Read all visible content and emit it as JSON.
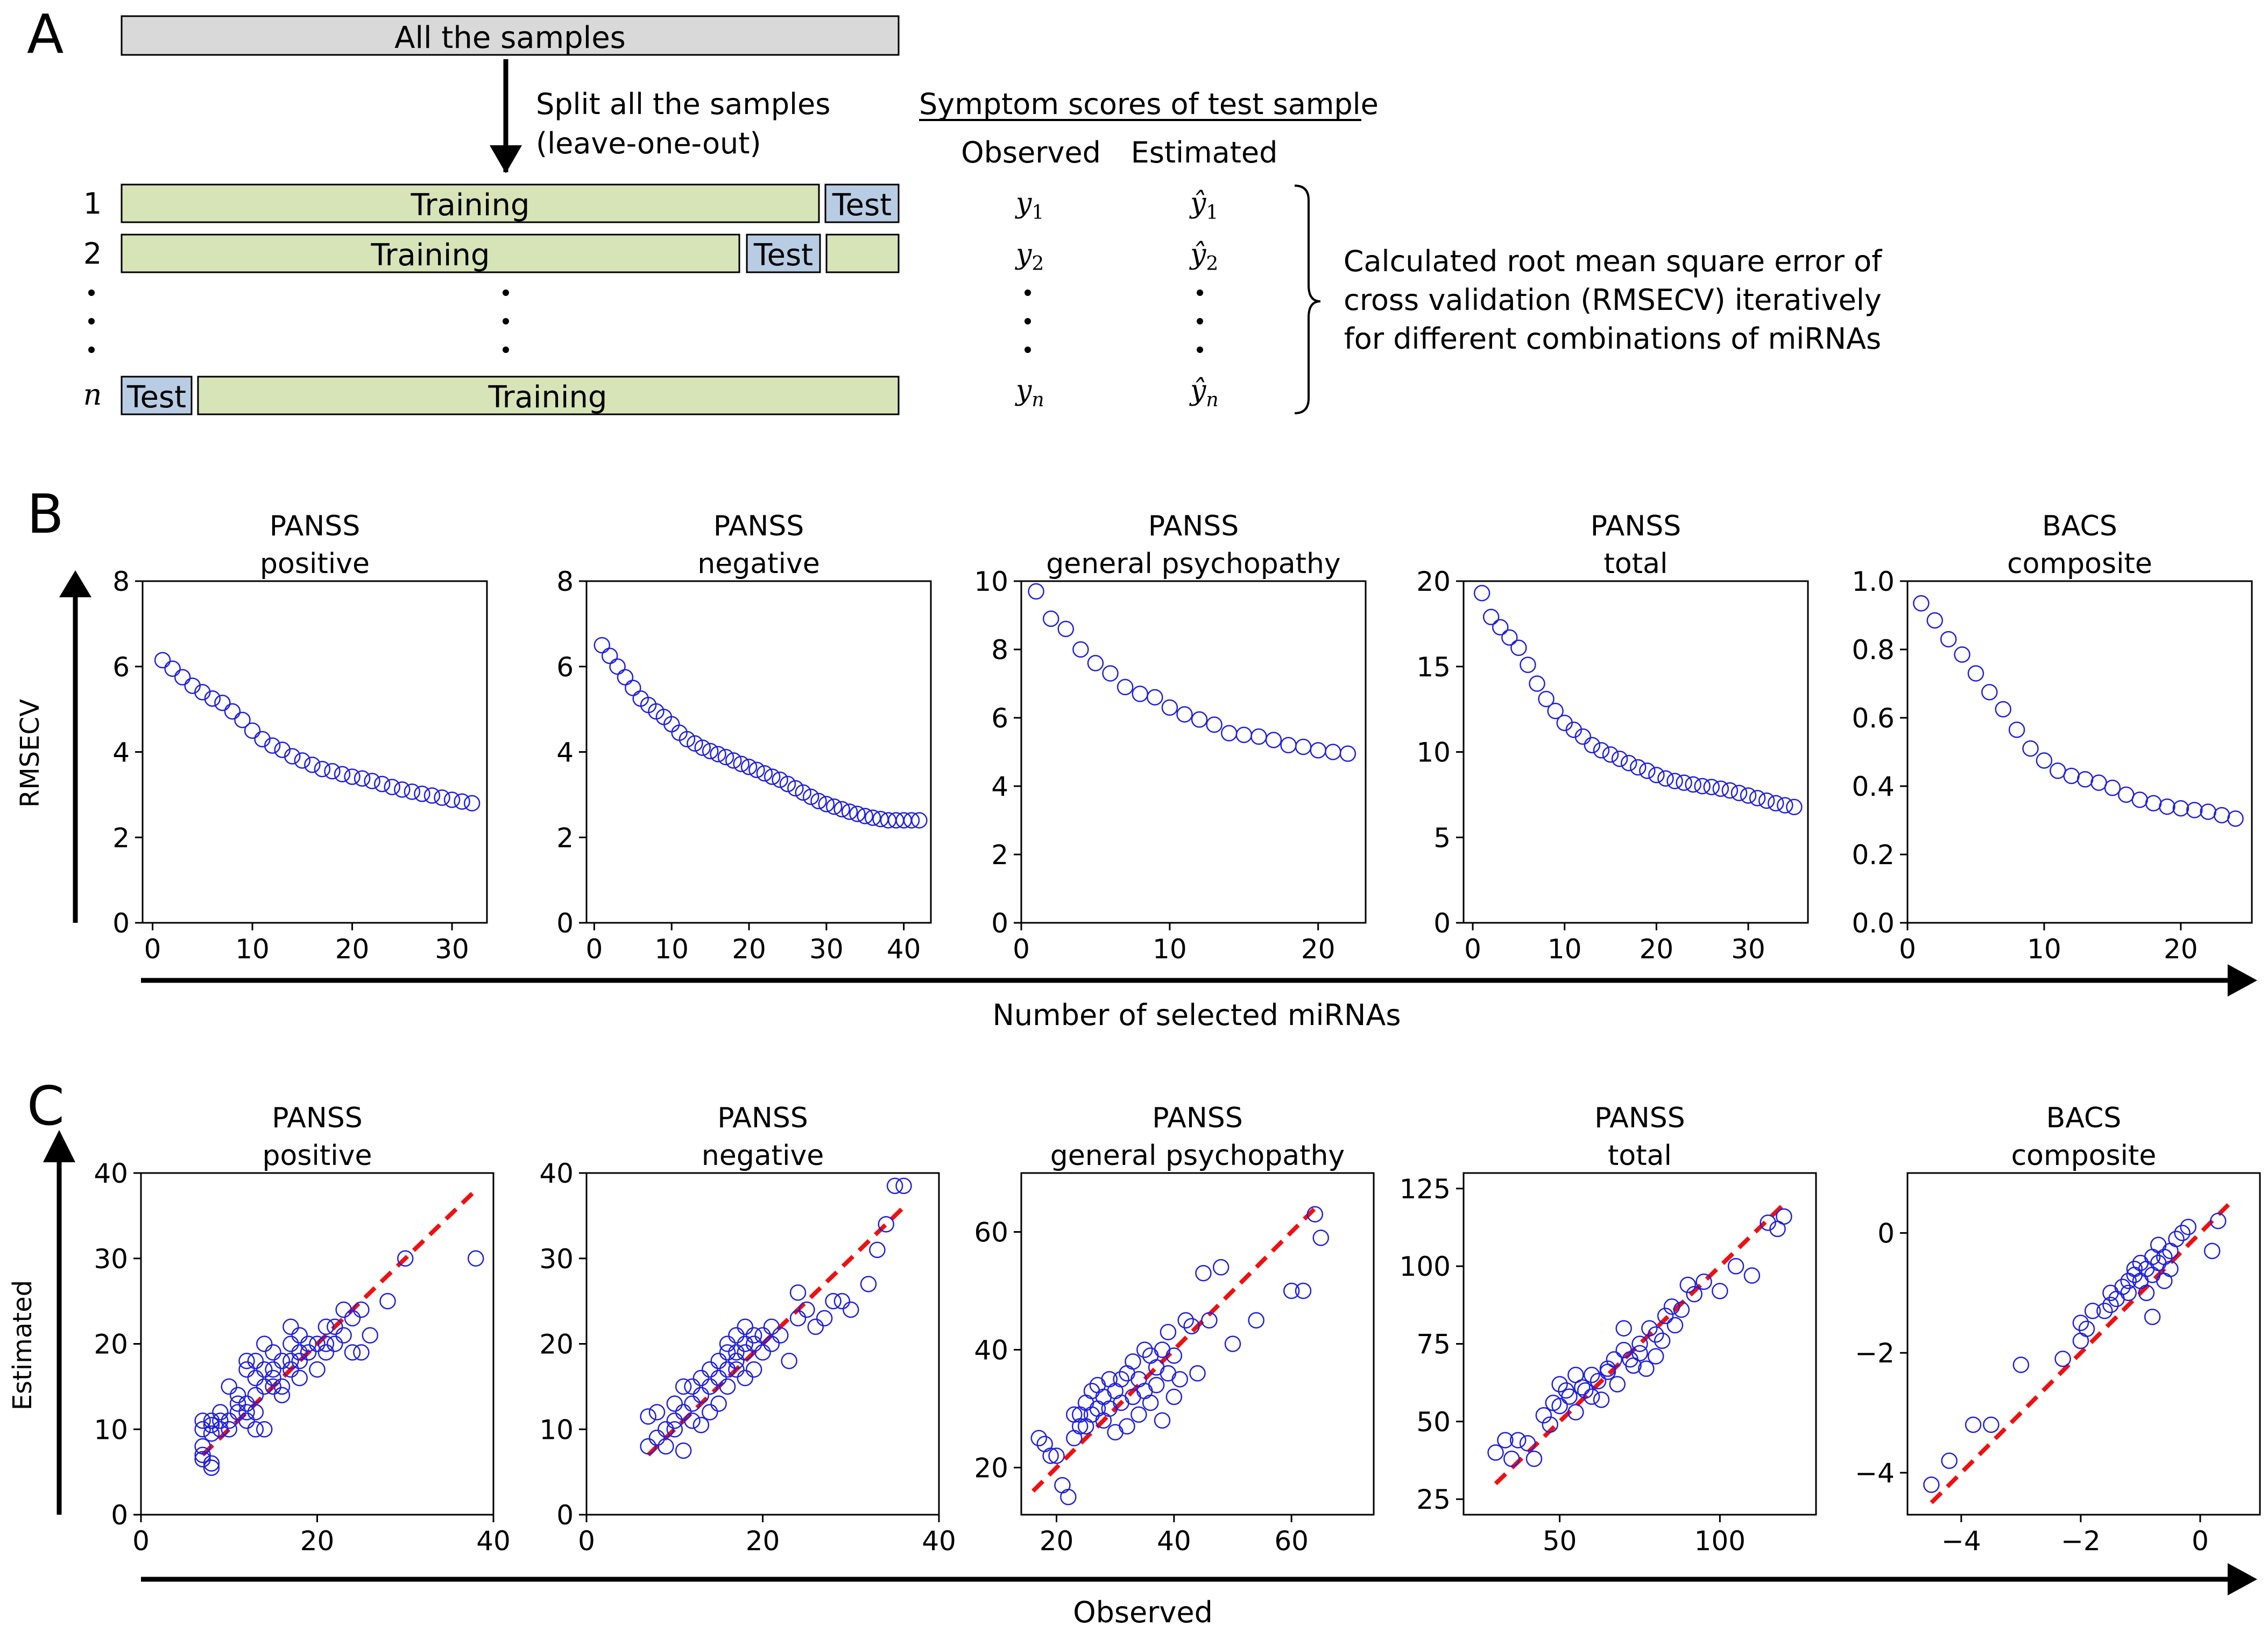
{
  "panel_labels": {
    "a": "A",
    "b": "B",
    "c": "C"
  },
  "panel_a": {
    "all_samples": "All the samples",
    "split_line1": "Split all the samples",
    "split_line2": "(leave-one-out)",
    "row1_index": "1",
    "row2_index": "2",
    "rown_index": "n",
    "training": "Training",
    "test": "Test",
    "scores_title": "Symptom scores of test sample",
    "observed_header": "Observed",
    "estimated_header": "Estimated",
    "y_obs": "y",
    "y_est": "ŷ",
    "sub1": "1",
    "sub2": "2",
    "subn": "n",
    "rmsecv_line1": "Calculated root mean square error of",
    "rmsecv_line2": "cross validation (RMSECV) iteratively",
    "rmsecv_line3": "for different combinations of miRNAs"
  },
  "panel_b": {
    "ylabel": "RMSECV",
    "xlabel": "Number of selected miRNAs"
  },
  "panel_c": {
    "ylabel": "Estimated",
    "xlabel": "Observed"
  },
  "colors": {
    "marker": "#2020e0",
    "fit": "#ee1111",
    "train": "#d6e4b8",
    "test": "#b8cce4",
    "gray": "#d9d9d9"
  },
  "chart_data": [
    {
      "id": "b1",
      "type": "scatter",
      "title": [
        "PANSS",
        "positive"
      ],
      "xlim": [
        -1,
        33.5
      ],
      "ylim": [
        0,
        8
      ],
      "xticks": [
        0,
        10,
        20,
        30
      ],
      "yticks": [
        0,
        2,
        4,
        6,
        8
      ],
      "ytick_labels": [
        "0",
        "2",
        "4",
        "6",
        "8"
      ],
      "x": [
        1,
        2,
        3,
        4,
        5,
        6,
        7,
        8,
        9,
        10,
        11,
        12,
        13,
        14,
        15,
        16,
        17,
        18,
        19,
        20,
        21,
        22,
        23,
        24,
        25,
        26,
        27,
        28,
        29,
        30,
        31,
        32
      ],
      "y": [
        6.15,
        5.95,
        5.75,
        5.55,
        5.4,
        5.25,
        5.15,
        4.95,
        4.75,
        4.5,
        4.3,
        4.15,
        4.05,
        3.9,
        3.8,
        3.7,
        3.6,
        3.55,
        3.48,
        3.42,
        3.38,
        3.32,
        3.25,
        3.18,
        3.12,
        3.07,
        3.02,
        2.98,
        2.93,
        2.88,
        2.84,
        2.8
      ]
    },
    {
      "id": "b2",
      "type": "scatter",
      "title": [
        "PANSS",
        "negative"
      ],
      "xlim": [
        -1,
        43.5
      ],
      "ylim": [
        0,
        8
      ],
      "xticks": [
        0,
        10,
        20,
        30,
        40
      ],
      "yticks": [
        0,
        2,
        4,
        6,
        8
      ],
      "ytick_labels": [
        "0",
        "2",
        "4",
        "6",
        "8"
      ],
      "x": [
        1,
        2,
        3,
        4,
        5,
        6,
        7,
        8,
        9,
        10,
        11,
        12,
        13,
        14,
        15,
        16,
        17,
        18,
        19,
        20,
        21,
        22,
        23,
        24,
        25,
        26,
        27,
        28,
        29,
        30,
        31,
        32,
        33,
        34,
        35,
        36,
        37,
        38,
        39,
        40,
        41,
        42
      ],
      "y": [
        6.5,
        6.25,
        6.0,
        5.75,
        5.5,
        5.25,
        5.1,
        4.95,
        4.82,
        4.65,
        4.45,
        4.3,
        4.2,
        4.1,
        4.02,
        3.95,
        3.88,
        3.8,
        3.72,
        3.65,
        3.58,
        3.5,
        3.42,
        3.35,
        3.25,
        3.15,
        3.05,
        2.95,
        2.85,
        2.78,
        2.72,
        2.66,
        2.6,
        2.55,
        2.5,
        2.46,
        2.43,
        2.4,
        2.4,
        2.4,
        2.4,
        2.4
      ]
    },
    {
      "id": "b3",
      "type": "scatter",
      "title": [
        "PANSS",
        "general psychopathy"
      ],
      "xlim": [
        0,
        23.2
      ],
      "ylim": [
        0,
        10
      ],
      "xticks": [
        0,
        10,
        20
      ],
      "yticks": [
        0,
        2,
        4,
        6,
        8,
        10
      ],
      "ytick_labels": [
        "0",
        "2",
        "4",
        "6",
        "8",
        "10"
      ],
      "x": [
        1,
        2,
        3,
        4,
        5,
        6,
        7,
        8,
        9,
        10,
        11,
        12,
        13,
        14,
        15,
        16,
        17,
        18,
        19,
        20,
        21,
        22
      ],
      "y": [
        9.7,
        8.9,
        8.6,
        8.0,
        7.6,
        7.3,
        6.9,
        6.7,
        6.6,
        6.3,
        6.1,
        5.95,
        5.8,
        5.55,
        5.5,
        5.45,
        5.35,
        5.2,
        5.15,
        5.05,
        5.0,
        4.95
      ]
    },
    {
      "id": "b4",
      "type": "scatter",
      "title": [
        "PANSS",
        "total"
      ],
      "xlim": [
        -1,
        36.5
      ],
      "ylim": [
        0,
        20
      ],
      "xticks": [
        0,
        10,
        20,
        30
      ],
      "yticks": [
        0,
        5,
        10,
        15,
        20
      ],
      "ytick_labels": [
        "0",
        "5",
        "10",
        "15",
        "20"
      ],
      "x": [
        1,
        2,
        3,
        4,
        5,
        6,
        7,
        8,
        9,
        10,
        11,
        12,
        13,
        14,
        15,
        16,
        17,
        18,
        19,
        20,
        21,
        22,
        23,
        24,
        25,
        26,
        27,
        28,
        29,
        30,
        31,
        32,
        33,
        34,
        35
      ],
      "y": [
        19.3,
        17.9,
        17.3,
        16.7,
        16.1,
        15.1,
        14.0,
        13.1,
        12.4,
        11.7,
        11.3,
        10.9,
        10.4,
        10.1,
        9.85,
        9.6,
        9.35,
        9.1,
        8.9,
        8.65,
        8.45,
        8.3,
        8.2,
        8.1,
        8.0,
        7.95,
        7.85,
        7.75,
        7.6,
        7.45,
        7.3,
        7.15,
        7.0,
        6.88,
        6.78
      ]
    },
    {
      "id": "b5",
      "type": "scatter",
      "title": [
        "BACS",
        "composite"
      ],
      "xlim": [
        0,
        25.2
      ],
      "ylim": [
        0,
        1
      ],
      "xticks": [
        0,
        10,
        20
      ],
      "yticks": [
        0,
        0.2,
        0.4,
        0.6,
        0.8,
        1.0
      ],
      "ytick_labels": [
        "0.0",
        "0.2",
        "0.4",
        "0.6",
        "0.8",
        "1.0"
      ],
      "x": [
        1,
        2,
        3,
        4,
        5,
        6,
        7,
        8,
        9,
        10,
        11,
        12,
        13,
        14,
        15,
        16,
        17,
        18,
        19,
        20,
        21,
        22,
        23,
        24
      ],
      "y": [
        0.935,
        0.885,
        0.83,
        0.785,
        0.73,
        0.675,
        0.625,
        0.565,
        0.51,
        0.475,
        0.445,
        0.43,
        0.42,
        0.41,
        0.395,
        0.375,
        0.36,
        0.35,
        0.34,
        0.335,
        0.33,
        0.325,
        0.315,
        0.305
      ]
    },
    {
      "id": "c1",
      "type": "scatter",
      "title": [
        "PANSS",
        "positive"
      ],
      "xlim": [
        0,
        40
      ],
      "ylim": [
        0,
        40
      ],
      "xticks": [
        0,
        20,
        40
      ],
      "yticks": [
        0,
        10,
        20,
        30,
        40
      ],
      "ytick_labels": [
        "0",
        "10",
        "20",
        "30",
        "40"
      ],
      "fit_line": [
        [
          7,
          7
        ],
        [
          38,
          38
        ]
      ],
      "x": [
        7,
        7,
        7,
        7,
        7,
        8,
        8,
        8,
        8,
        8,
        9,
        9,
        9,
        10,
        10,
        10,
        11,
        11,
        11,
        12,
        12,
        12,
        12,
        12,
        13,
        13,
        13,
        13,
        13,
        14,
        14,
        14,
        14,
        15,
        15,
        15,
        15,
        16,
        16,
        16,
        17,
        17,
        17,
        17,
        18,
        18,
        18,
        18,
        19,
        19,
        20,
        20,
        21,
        21,
        21,
        22,
        22,
        23,
        23,
        24,
        24,
        25,
        25,
        26,
        28,
        30,
        38
      ],
      "y": [
        8,
        10,
        11,
        6.5,
        7,
        10.5,
        11,
        5.5,
        6,
        9.5,
        11,
        12,
        10,
        10,
        11,
        15,
        13,
        14,
        12,
        12,
        13,
        17,
        18,
        11,
        10,
        12,
        14,
        16,
        18,
        10,
        15,
        17,
        20,
        15,
        16,
        17,
        19,
        14,
        15,
        18,
        17,
        18,
        20,
        22,
        16,
        18,
        21,
        19,
        19,
        20,
        17,
        20,
        19,
        20,
        22,
        20,
        22,
        21,
        24,
        19,
        23,
        19,
        24,
        21,
        25,
        30,
        30
      ]
    },
    {
      "id": "c2",
      "type": "scatter",
      "title": [
        "PANSS",
        "negative"
      ],
      "xlim": [
        0,
        40
      ],
      "ylim": [
        0,
        40
      ],
      "xticks": [
        0,
        20,
        40
      ],
      "yticks": [
        0,
        10,
        20,
        30,
        40
      ],
      "ytick_labels": [
        "0",
        "10",
        "20",
        "30",
        "40"
      ],
      "fit_line": [
        [
          7,
          7
        ],
        [
          36,
          36
        ]
      ],
      "x": [
        7,
        7,
        8,
        8,
        9,
        9,
        10,
        10,
        10,
        11,
        11,
        11,
        12,
        12,
        12,
        13,
        13,
        13,
        14,
        14,
        14,
        15,
        15,
        15,
        16,
        16,
        16,
        16,
        17,
        17,
        17,
        17,
        18,
        18,
        18,
        18,
        19,
        19,
        19,
        20,
        20,
        21,
        21,
        22,
        23,
        24,
        24,
        25,
        26,
        27,
        28,
        29,
        30,
        32,
        33,
        34,
        35,
        36
      ],
      "y": [
        8,
        11.5,
        9,
        12,
        8,
        10,
        10,
        13,
        11,
        7.5,
        12,
        15,
        11,
        13,
        15,
        10.5,
        14,
        16,
        12,
        15,
        17,
        13,
        16,
        18,
        15,
        17,
        19,
        20,
        17,
        18,
        19,
        21,
        16,
        19,
        20,
        22,
        17,
        20,
        21,
        19,
        21,
        20,
        22,
        21,
        18,
        23,
        26,
        24,
        22,
        23,
        25,
        25,
        24,
        27,
        31,
        34,
        38.5,
        38.5
      ]
    },
    {
      "id": "c3",
      "type": "scatter",
      "title": [
        "PANSS",
        "general psychopathy"
      ],
      "xlim": [
        14,
        74
      ],
      "ylim": [
        12,
        70
      ],
      "xticks": [
        20,
        40,
        60
      ],
      "yticks": [
        20,
        40,
        60
      ],
      "ytick_labels": [
        "20",
        "40",
        "60"
      ],
      "fit_line": [
        [
          16,
          16
        ],
        [
          64,
          64
        ]
      ],
      "x": [
        17,
        18,
        19,
        20,
        21,
        22,
        23,
        23,
        24,
        24,
        25,
        25,
        26,
        26,
        27,
        27,
        28,
        28,
        29,
        29,
        30,
        30,
        31,
        31,
        32,
        32,
        33,
        33,
        34,
        34,
        35,
        35,
        36,
        36,
        37,
        37,
        38,
        38,
        39,
        39,
        40,
        40,
        41,
        42,
        43,
        44,
        45,
        46,
        48,
        50,
        54,
        60,
        62,
        64,
        65
      ],
      "y": [
        25,
        24,
        22,
        22,
        17,
        15,
        29,
        25,
        27,
        29,
        27,
        31,
        29,
        33,
        30,
        34,
        28,
        32,
        30,
        35,
        26,
        33,
        31,
        35,
        27,
        36,
        32,
        38,
        29,
        35,
        40,
        33,
        39,
        31,
        37,
        34,
        28,
        40,
        36,
        43,
        32,
        39,
        35,
        45,
        44,
        36,
        53,
        45,
        54,
        41,
        45,
        50,
        50,
        63,
        59
      ]
    },
    {
      "id": "c4",
      "type": "scatter",
      "title": [
        "PANSS",
        "total"
      ],
      "xlim": [
        20,
        130
      ],
      "ylim": [
        20,
        130
      ],
      "xticks": [
        50,
        100
      ],
      "yticks": [
        25,
        50,
        75,
        100,
        125
      ],
      "ytick_labels": [
        "25",
        "50",
        "75",
        "100",
        "125"
      ],
      "fit_line": [
        [
          30,
          30
        ],
        [
          120,
          120
        ]
      ],
      "x": [
        30,
        33,
        35,
        37,
        40,
        42,
        45,
        47,
        48,
        50,
        50,
        52,
        53,
        55,
        55,
        57,
        58,
        60,
        60,
        62,
        63,
        65,
        65,
        67,
        68,
        70,
        70,
        72,
        73,
        75,
        75,
        77,
        78,
        80,
        80,
        82,
        83,
        85,
        86,
        88,
        90,
        92,
        95,
        100,
        105,
        110,
        115,
        118,
        120
      ],
      "y": [
        40,
        44,
        38,
        44,
        43,
        38,
        52,
        49,
        56,
        55,
        62,
        60,
        58,
        53,
        65,
        61,
        60,
        58,
        65,
        63,
        57,
        67,
        66,
        70,
        62,
        80,
        73,
        70,
        68,
        75,
        72,
        67,
        80,
        78,
        71,
        76,
        84,
        87,
        81,
        86,
        94,
        91,
        95,
        92,
        100,
        97,
        114,
        112,
        116
      ]
    },
    {
      "id": "c5",
      "type": "scatter",
      "title": [
        "BACS",
        "composite"
      ],
      "xlim": [
        -4.9,
        1.0
      ],
      "ylim": [
        -4.7,
        1.0
      ],
      "xticks": [
        -4,
        -2,
        0
      ],
      "xtick_labels": [
        "−4",
        "−2",
        "0"
      ],
      "yticks": [
        -4,
        -2,
        0
      ],
      "ytick_labels": [
        "−4",
        "−2",
        "0"
      ],
      "fit_line": [
        [
          -4.5,
          -4.5
        ],
        [
          0.5,
          0.5
        ]
      ],
      "x": [
        -4.5,
        -4.2,
        -3.8,
        -3.5,
        -3.0,
        -2.3,
        -2.0,
        -2.0,
        -1.9,
        -1.8,
        -1.6,
        -1.5,
        -1.5,
        -1.4,
        -1.3,
        -1.2,
        -1.2,
        -1.1,
        -1.1,
        -1.0,
        -1.0,
        -0.9,
        -0.9,
        -0.8,
        -0.8,
        -0.8,
        -0.7,
        -0.7,
        -0.6,
        -0.6,
        -0.5,
        -0.5,
        -0.4,
        -0.3,
        -0.2,
        0.2,
        0.3
      ],
      "y": [
        -4.2,
        -3.8,
        -3.2,
        -3.2,
        -2.2,
        -2.1,
        -1.8,
        -1.5,
        -1.6,
        -1.3,
        -1.3,
        -1.2,
        -1.0,
        -1.1,
        -0.9,
        -0.8,
        -1.0,
        -0.7,
        -0.6,
        -0.8,
        -0.5,
        -0.6,
        -1.0,
        -0.4,
        -0.7,
        -1.4,
        -0.5,
        -0.2,
        -0.8,
        -0.4,
        -0.3,
        -0.6,
        -0.1,
        0.0,
        0.1,
        -0.3,
        0.2
      ]
    }
  ]
}
